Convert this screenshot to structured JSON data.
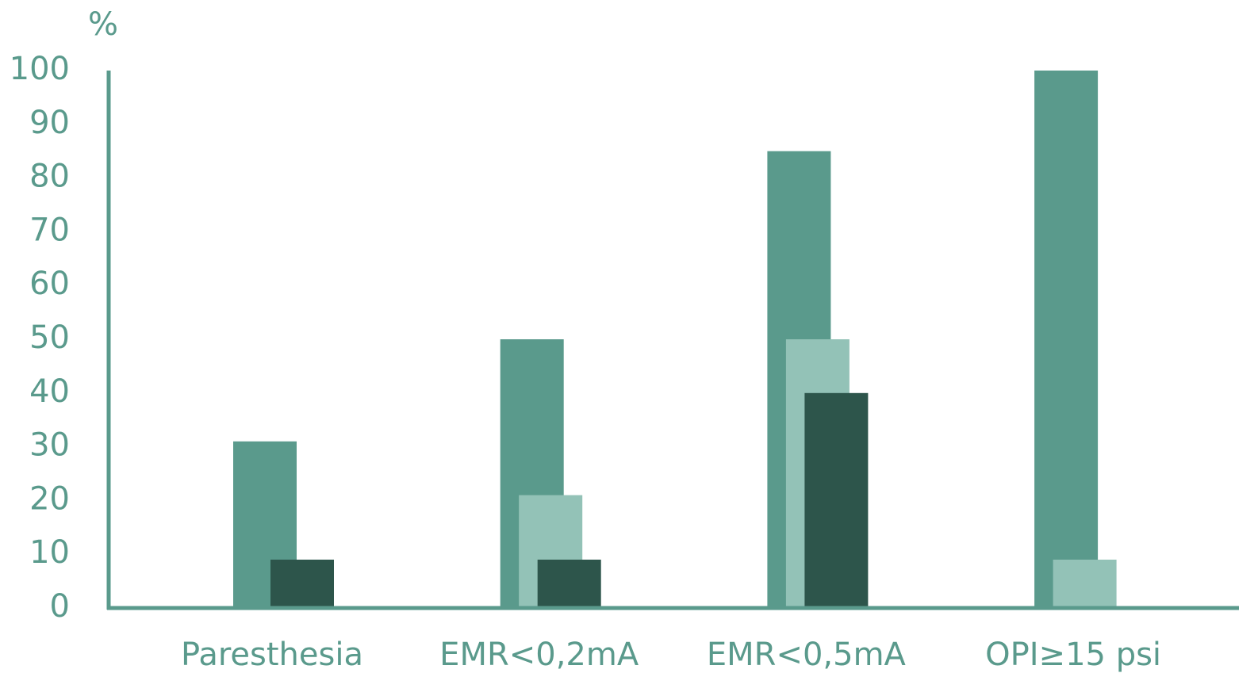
{
  "chart_data": {
    "type": "bar",
    "y_unit": "%",
    "categories": [
      "Paresthesia",
      "EMR<0,2mA",
      "EMR<0,5mA",
      "OPI≥15 psi"
    ],
    "series": [
      {
        "color": "#5a9a8c",
        "values": [
          31,
          50,
          85,
          100
        ]
      },
      {
        "color": "#93c2b7",
        "values": [
          null,
          21,
          50,
          9
        ]
      },
      {
        "color": "#2d554b",
        "values": [
          9,
          9,
          40,
          null
        ]
      }
    ],
    "ylim": [
      0,
      100
    ],
    "yticks": [
      0,
      10,
      20,
      30,
      40,
      50,
      60,
      70,
      80,
      90,
      100
    ],
    "grid": false
  }
}
